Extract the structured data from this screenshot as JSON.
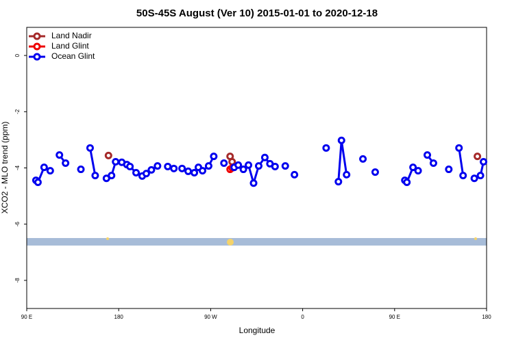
{
  "chart_data": {
    "type": "line",
    "title": "50S-45S August (Ver 10)   2015-01-01 to 2020-12-18",
    "xlabel": "Longitude",
    "ylabel": "XCO2 - MLO trend (ppm)",
    "xlim": [
      90,
      540
    ],
    "xticks": [
      {
        "value": 90,
        "label": "90 E"
      },
      180,
      {
        "value": 270,
        "label": "90 W"
      },
      {
        "value": 360,
        "label": "0"
      },
      {
        "value": 450,
        "label": "90 E"
      },
      {
        "value": 540,
        "label": "180"
      }
    ],
    "ylim": [
      -9,
      1
    ],
    "yticks": [
      0,
      -2,
      -4,
      -6,
      -8
    ],
    "legend": "upper left",
    "series": [
      {
        "name": "Land Nadir",
        "color": "#a52a2a",
        "x": [
          170,
          null,
          289,
          291,
          null,
          531
        ],
        "values": [
          -3.56,
          null,
          -3.59,
          -3.78,
          null,
          -3.59
        ]
      },
      {
        "name": "Land Glint",
        "color": "#ee0000",
        "x": [
          289,
          291
        ],
        "values": [
          -4.05,
          -4.0
        ]
      },
      {
        "name": "Ocean Glint",
        "color": "#0000ee",
        "x": [
          99,
          101,
          107,
          113,
          null,
          122,
          128,
          null,
          143,
          null,
          152,
          157,
          null,
          168,
          173,
          177,
          183,
          188,
          191,
          197,
          203,
          207,
          212,
          218,
          null,
          228,
          234,
          null,
          242,
          248,
          254,
          258,
          262,
          268,
          273,
          null,
          283,
          null,
          293,
          297,
          302,
          307,
          312,
          317,
          323,
          328,
          333,
          null,
          343,
          null,
          352,
          null,
          383,
          null,
          395,
          398,
          403,
          null,
          419,
          null,
          431,
          null,
          460,
          462,
          468,
          473,
          null,
          482,
          488,
          null,
          503,
          null,
          513,
          517,
          null,
          528,
          534,
          537
        ],
        "values": [
          -4.44,
          -4.51,
          -3.98,
          -4.1,
          null,
          -3.54,
          -3.83,
          null,
          -4.05,
          null,
          -3.29,
          -4.27,
          null,
          -4.37,
          -4.27,
          -3.78,
          -3.8,
          -3.88,
          -3.95,
          -4.17,
          -4.29,
          -4.2,
          -4.07,
          -3.93,
          null,
          -3.95,
          -4.02,
          null,
          -4.02,
          -4.12,
          -4.17,
          -3.98,
          -4.1,
          -3.93,
          -3.59,
          null,
          -3.83,
          null,
          -3.98,
          -3.9,
          -4.05,
          -3.9,
          -4.54,
          -3.93,
          -3.63,
          -3.85,
          -3.95,
          null,
          -3.93,
          null,
          -4.24,
          null,
          -3.29,
          null,
          -4.49,
          -3.02,
          -4.24,
          null,
          -3.68,
          null,
          -4.15,
          null,
          -4.44,
          -4.51,
          -3.98,
          -4.1,
          null,
          -3.54,
          -3.83,
          null,
          -4.05,
          null,
          -3.29,
          -4.27,
          null,
          -4.37,
          -4.27,
          -3.78
        ]
      }
    ]
  }
}
